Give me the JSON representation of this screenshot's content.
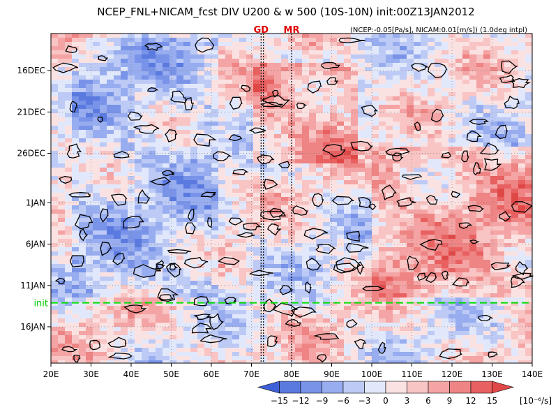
{
  "chart_data": {
    "type": "heatmap",
    "title": "NCEP_FNL+NICAM_fcst DIV U200 & w 500 (10S-10N) init:00Z13JAN2012",
    "subtitle": "(NCEP:-0.05[Pa/s], NICAM:0.01[m/s]) (1.0deg intpl)",
    "x_tick_labels": [
      "20E",
      "30E",
      "40E",
      "50E",
      "60E",
      "70E",
      "80E",
      "90E",
      "100E",
      "110E",
      "120E",
      "130E",
      "140E"
    ],
    "x_tick_values": [
      20,
      30,
      40,
      50,
      60,
      70,
      80,
      90,
      100,
      110,
      120,
      130,
      140
    ],
    "xlim": [
      20,
      140
    ],
    "y_tick_labels": [
      "16DEC",
      "21DEC",
      "26DEC",
      "1JAN",
      "6JAN",
      "11JAN",
      "16JAN"
    ],
    "y_tick_days": [
      1,
      6,
      11,
      17,
      22,
      27,
      32
    ],
    "ylim_days": [
      -3.5,
      36.4
    ],
    "ylim": [
      "12DEC",
      "20JAN"
    ],
    "y_reversed": true,
    "markers": [
      {
        "label": "GD",
        "lon": 72.4
      },
      {
        "label": "MR",
        "lon": 80
      }
    ],
    "marker_lines_lon": [
      72.4,
      73.0,
      80.0
    ],
    "init_line": {
      "label": "init",
      "day": 29.1,
      "date": "13JAN"
    },
    "colorbar": {
      "levels": [
        -15,
        -12,
        -9,
        -6,
        -3,
        0,
        3,
        6,
        9,
        12,
        15
      ],
      "labels": [
        "-15",
        "-12",
        "-9",
        "-6",
        "-3",
        "0",
        "3",
        "6",
        "9",
        "12",
        "15"
      ],
      "unit": "[10⁻⁶/s]",
      "colors": [
        "#3f5fd8",
        "#5a7ae0",
        "#7893e8",
        "#98adef",
        "#bccaf5",
        "#e2e8fb",
        "#fbe2e2",
        "#f8c4c4",
        "#f4a4a4",
        "#ee8484",
        "#e86060",
        "#e04848"
      ]
    },
    "regions": [
      {
        "lon_min": 25,
        "lon_max": 60,
        "day_min": -3,
        "day_max": 28,
        "value": -4
      },
      {
        "lon_min": 70,
        "lon_max": 95,
        "day_min": 0,
        "day_max": 12,
        "value": 7
      },
      {
        "lon_min": 100,
        "lon_max": 140,
        "day_min": 10,
        "day_max": 28,
        "value": 6
      },
      {
        "lon_min": 20,
        "lon_max": 140,
        "day_min": 29,
        "day_max": 36,
        "value": 1
      }
    ],
    "grid": "dotted"
  }
}
